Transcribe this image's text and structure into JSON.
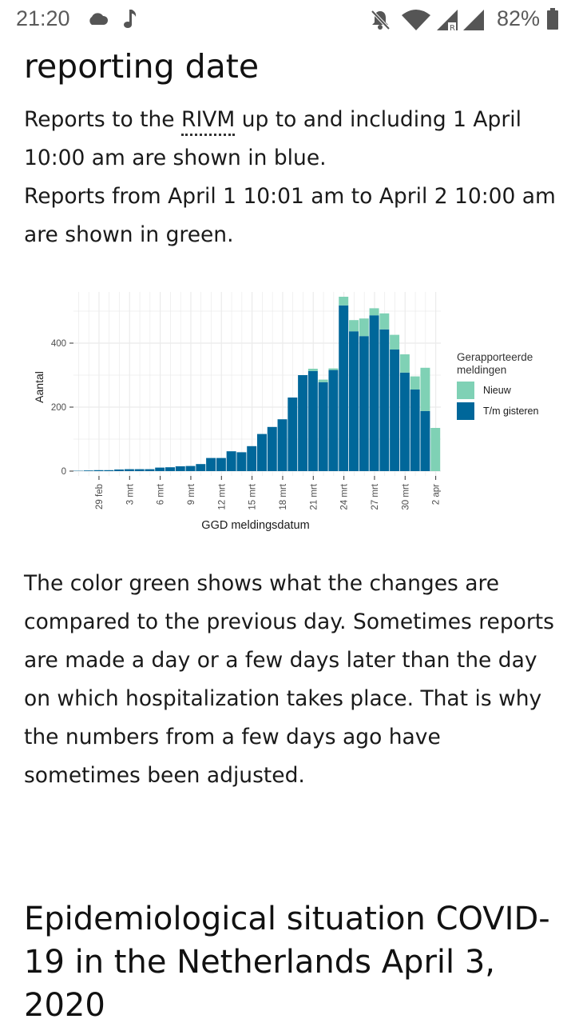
{
  "status_bar": {
    "time": "21:20",
    "battery_percent": "82%",
    "icons": [
      "cloud-icon",
      "music-note-icon",
      "bell-off-icon",
      "wifi-icon",
      "signal-icon",
      "signal-icon",
      "battery-icon"
    ]
  },
  "article": {
    "heading_tail": "reporting date",
    "intro": {
      "line1_before": "Reports to the ",
      "abbr": "RIVM",
      "line1_after": " up to and including 1 April 10:00 am are shown in blue.",
      "line2": "Reports from April 1 10:01 am to April 2 10:00 am are shown in green."
    },
    "explanation": "The color green shows what the changes are compared to the previous day. Sometimes reports are made a day or a few days later than the day on which hospitalization takes place. That is why the numbers from a few days ago have sometimes been adjusted.",
    "next_section_title": "Epidemiological situation COVID-19 in the Netherlands April 3, 2020"
  },
  "colors": {
    "blue": "#00679a",
    "green": "#7fd1b5",
    "grid": "#ebebeb",
    "axis_text": "#4d4d4d"
  },
  "chart_data": {
    "type": "bar",
    "stacked": true,
    "xlabel": "GGD meldingsdatum",
    "ylabel": "Aantal",
    "ylim": [
      0,
      560
    ],
    "yticks": [
      0,
      200,
      400
    ],
    "grid": true,
    "legend": {
      "title": "Gerapporteerde meldingen",
      "position": "right",
      "entries": [
        "Nieuw",
        "T/m gisteren"
      ]
    },
    "xtick_labels": [
      "29 feb",
      "3 mrt",
      "6 mrt",
      "9 mrt",
      "12 mrt",
      "15 mrt",
      "18 mrt",
      "21 mrt",
      "24 mrt",
      "27 mrt",
      "30 mrt",
      "2 apr"
    ],
    "categories": [
      "27 feb",
      "28 feb",
      "29 feb",
      "1 mrt",
      "2 mrt",
      "3 mrt",
      "4 mrt",
      "5 mrt",
      "6 mrt",
      "7 mrt",
      "8 mrt",
      "9 mrt",
      "10 mrt",
      "11 mrt",
      "12 mrt",
      "13 mrt",
      "14 mrt",
      "15 mrt",
      "16 mrt",
      "17 mrt",
      "18 mrt",
      "19 mrt",
      "20 mrt",
      "21 mrt",
      "22 mrt",
      "23 mrt",
      "24 mrt",
      "25 mrt",
      "26 mrt",
      "27 mrt",
      "28 mrt",
      "29 mrt",
      "30 mrt",
      "31 mrt",
      "1 apr",
      "2 apr"
    ],
    "series": [
      {
        "name": "T/m gisteren",
        "values": [
          1,
          2,
          3,
          3,
          5,
          6,
          6,
          6,
          11,
          12,
          15,
          16,
          22,
          41,
          41,
          62,
          59,
          78,
          116,
          138,
          162,
          230,
          300,
          313,
          278,
          316,
          518,
          437,
          422,
          487,
          443,
          380,
          308,
          255,
          188,
          0
        ]
      },
      {
        "name": "Nieuw",
        "values": [
          0,
          0,
          0,
          0,
          0,
          0,
          0,
          0,
          0,
          0,
          0,
          0,
          0,
          0,
          0,
          0,
          0,
          0,
          0,
          0,
          0,
          0,
          0,
          7,
          8,
          5,
          27,
          35,
          55,
          22,
          50,
          46,
          57,
          41,
          135,
          135
        ]
      }
    ]
  }
}
